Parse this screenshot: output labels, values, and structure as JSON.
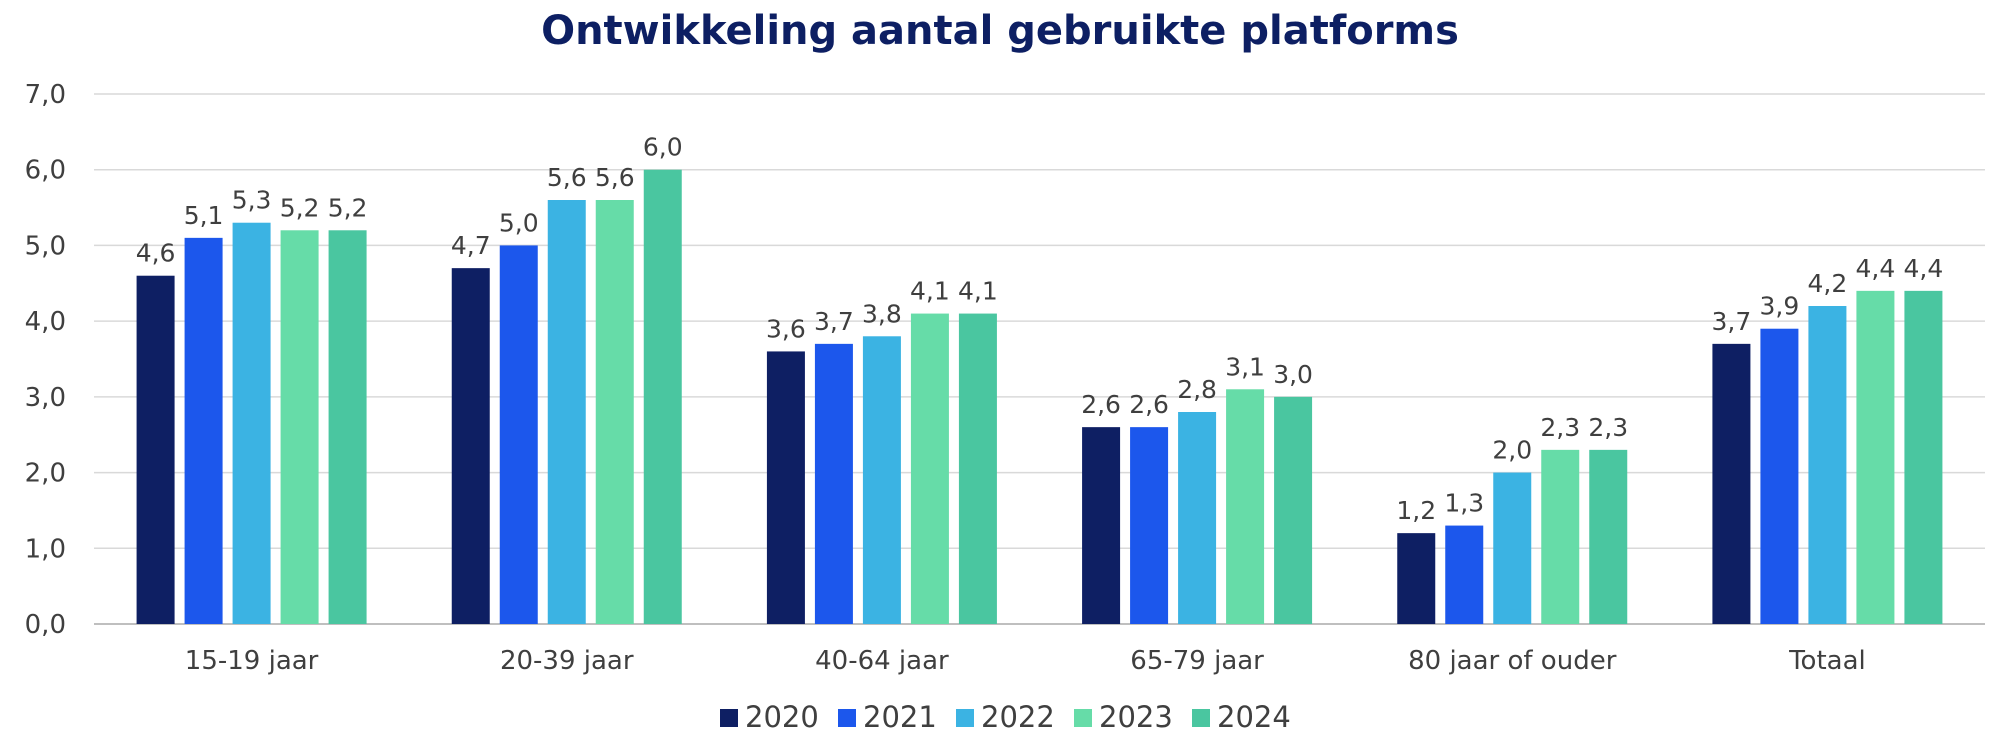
{
  "chart_data": {
    "type": "bar",
    "title": "Ontwikkeling aantal gebruikte platforms",
    "xlabel": "",
    "ylabel": "",
    "ylim": [
      0,
      7
    ],
    "yticks": [
      "0,0",
      "1,0",
      "2,0",
      "3,0",
      "4,0",
      "5,0",
      "6,0",
      "7,0"
    ],
    "grid": true,
    "legend_position": "bottom",
    "categories": [
      "15-19 jaar",
      "20-39 jaar",
      "40-64 jaar",
      "65-79 jaar",
      "80 jaar of ouder",
      "Totaal"
    ],
    "series": [
      {
        "name": "2020",
        "color": "#0e1f63",
        "values": [
          4.6,
          4.7,
          3.6,
          2.6,
          1.2,
          3.7
        ],
        "labels": [
          "4,6",
          "4,7",
          "3,6",
          "2,6",
          "1,2",
          "3,7"
        ]
      },
      {
        "name": "2021",
        "color": "#1c57ec",
        "values": [
          5.1,
          5.0,
          3.7,
          2.6,
          1.3,
          3.9
        ],
        "labels": [
          "5,1",
          "5,0",
          "3,7",
          "2,6",
          "1,3",
          "3,9"
        ]
      },
      {
        "name": "2022",
        "color": "#3bb3e3",
        "values": [
          5.3,
          5.6,
          3.8,
          2.8,
          2.0,
          4.2
        ],
        "labels": [
          "5,3",
          "5,6",
          "3,8",
          "2,8",
          "2,0",
          "4,2"
        ]
      },
      {
        "name": "2023",
        "color": "#66dca8",
        "values": [
          5.2,
          5.6,
          4.1,
          3.1,
          2.3,
          4.4
        ],
        "labels": [
          "5,2",
          "5,6",
          "4,1",
          "3,1",
          "2,3",
          "4,4"
        ]
      },
      {
        "name": "2024",
        "color": "#4ac6a0",
        "values": [
          5.2,
          6.0,
          4.1,
          3.0,
          2.3,
          4.4
        ],
        "labels": [
          "5,2",
          "6,0",
          "4,1",
          "3,0",
          "2,3",
          "4,4"
        ]
      }
    ]
  }
}
